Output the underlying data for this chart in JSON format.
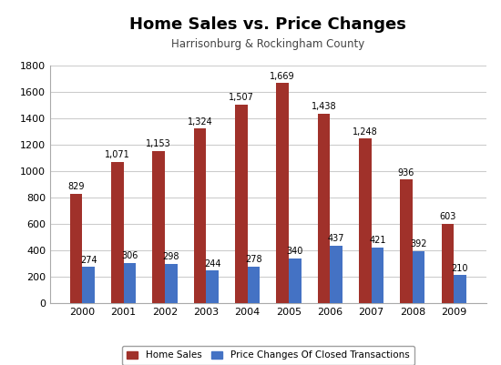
{
  "title": "Home Sales vs. Price Changes",
  "subtitle": "Harrisonburg & Rockingham County",
  "years": [
    2000,
    2001,
    2002,
    2003,
    2004,
    2005,
    2006,
    2007,
    2008,
    2009
  ],
  "home_sales": [
    829,
    1071,
    1153,
    1324,
    1507,
    1669,
    1438,
    1248,
    936,
    603
  ],
  "price_changes": [
    274,
    306,
    298,
    244,
    278,
    340,
    437,
    421,
    392,
    210
  ],
  "bar_color_sales": "#A0312A",
  "bar_color_price": "#4472C4",
  "ylim": [
    0,
    1800
  ],
  "yticks": [
    0,
    200,
    400,
    600,
    800,
    1000,
    1200,
    1400,
    1600,
    1800
  ],
  "legend_label_sales": "Home Sales",
  "legend_label_price": "Price Changes Of Closed Transactions",
  "title_fontsize": 13,
  "subtitle_fontsize": 8.5,
  "label_fontsize": 7,
  "tick_fontsize": 8,
  "background_color": "#FFFFFF",
  "grid_color": "#CCCCCC"
}
